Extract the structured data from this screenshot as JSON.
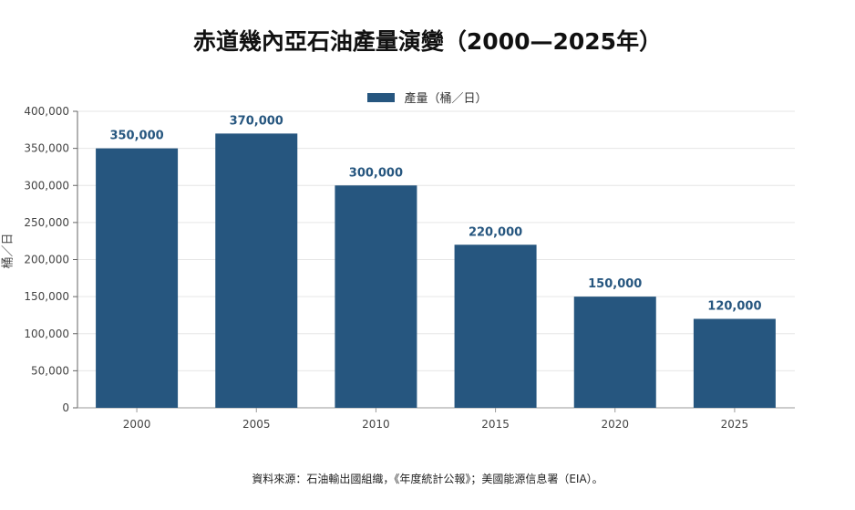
{
  "title": "赤道幾內亞石油產量演變（2000—2025年）",
  "legend": {
    "label": "產量（桶／日）",
    "color": "#26567f"
  },
  "ylabel": "桶／日",
  "source": "資料來源：石油輸出國組織，《年度統計公報》；美國能源信息署（EIA）。",
  "chart_data": {
    "type": "bar",
    "title": "赤道幾內亞石油產量演變（2000—2025年）",
    "categories": [
      "2000",
      "2005",
      "2010",
      "2015",
      "2020",
      "2025"
    ],
    "series": [
      {
        "name": "產量（桶／日）",
        "values": [
          350000,
          370000,
          300000,
          220000,
          150000,
          120000
        ],
        "color": "#26567f"
      }
    ],
    "data_labels": [
      "350,000",
      "370,000",
      "300,000",
      "220,000",
      "150,000",
      "120,000"
    ],
    "xlabel": "",
    "ylabel": "桶／日",
    "ylim": [
      0,
      400000
    ],
    "yticks": [
      0,
      50000,
      100000,
      150000,
      200000,
      250000,
      300000,
      350000,
      400000
    ],
    "ytick_labels": [
      "0",
      "50,000",
      "100,000",
      "150,000",
      "200,000",
      "250,000",
      "300,000",
      "350,000",
      "400,000"
    ],
    "grid": true,
    "legend_position": "top-center"
  }
}
